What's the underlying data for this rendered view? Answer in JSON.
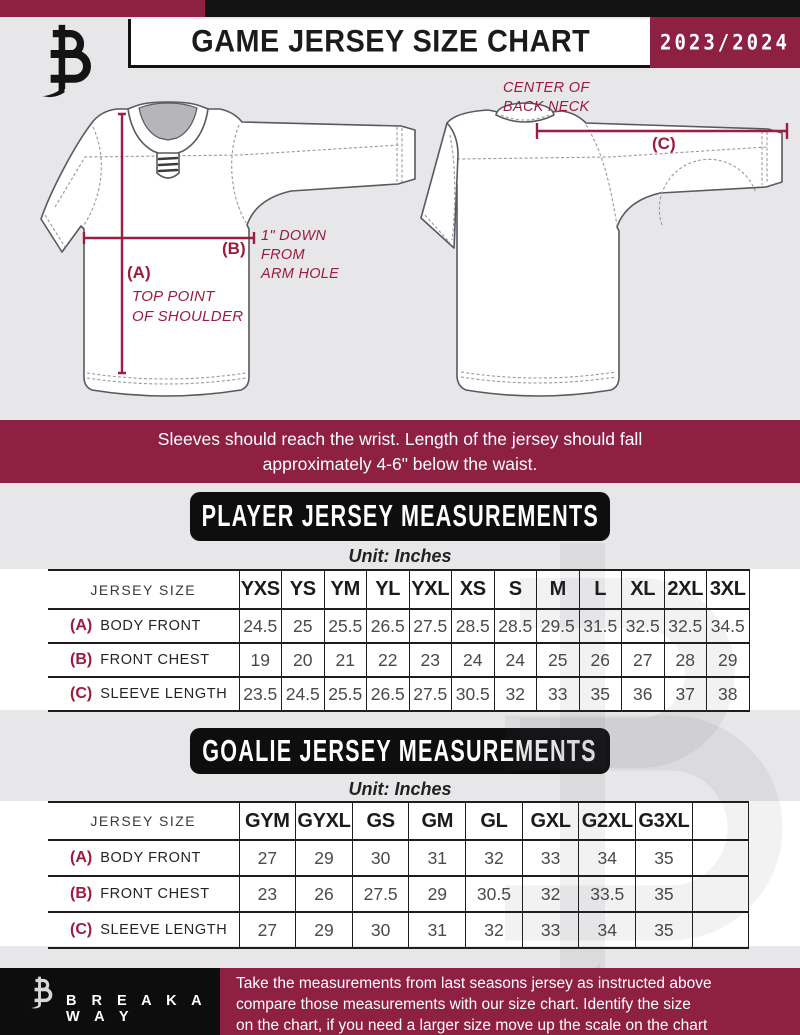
{
  "header": {
    "title": "GAME JERSEY SIZE CHART",
    "season": "2023/2024"
  },
  "diagram": {
    "front": {
      "a_label": "(A)",
      "a_note": "TOP POINT\nOF SHOULDER",
      "b_label": "(B)",
      "b_note": "1\" DOWN\nFROM\nARM HOLE"
    },
    "back": {
      "c_label": "(C)",
      "c_note": "CENTER OF\nBACK NECK"
    }
  },
  "banner": {
    "text": "Sleeves should reach the wrist. Length of the jersey should fall\napproximately 4-6\" below the waist."
  },
  "player_table": {
    "title": "PLAYER JERSEY MEASUREMENTS",
    "unit": "Unit: Inches",
    "size_header": "JERSEY SIZE",
    "sizes": [
      "YXS",
      "YS",
      "YM",
      "YL",
      "YXL",
      "XS",
      "S",
      "M",
      "L",
      "XL",
      "2XL",
      "3XL"
    ],
    "rows": [
      {
        "key": "(A)",
        "label": "BODY FRONT",
        "values": [
          "24.5",
          "25",
          "25.5",
          "26.5",
          "27.5",
          "28.5",
          "28.5",
          "29.5",
          "31.5",
          "32.5",
          "32.5",
          "34.5"
        ]
      },
      {
        "key": "(B)",
        "label": "FRONT CHEST",
        "values": [
          "19",
          "20",
          "21",
          "22",
          "23",
          "24",
          "24",
          "25",
          "26",
          "27",
          "28",
          "29"
        ]
      },
      {
        "key": "(C)",
        "label": "SLEEVE LENGTH",
        "values": [
          "23.5",
          "24.5",
          "25.5",
          "26.5",
          "27.5",
          "30.5",
          "32",
          "33",
          "35",
          "36",
          "37",
          "38"
        ]
      }
    ]
  },
  "goalie_table": {
    "title": "GOALIE JERSEY MEASUREMENTS",
    "unit": "Unit: Inches",
    "size_header": "JERSEY SIZE",
    "sizes": [
      "GYM",
      "GYXL",
      "GS",
      "GM",
      "GL",
      "GXL",
      "G2XL",
      "G3XL",
      ""
    ],
    "rows": [
      {
        "key": "(A)",
        "label": "BODY FRONT",
        "values": [
          "27",
          "29",
          "30",
          "31",
          "32",
          "33",
          "34",
          "35",
          ""
        ]
      },
      {
        "key": "(B)",
        "label": "FRONT CHEST",
        "values": [
          "23",
          "26",
          "27.5",
          "29",
          "30.5",
          "32",
          "33.5",
          "35",
          ""
        ]
      },
      {
        "key": "(C)",
        "label": "SLEEVE LENGTH",
        "values": [
          "27",
          "29",
          "30",
          "31",
          "32",
          "33",
          "34",
          "35",
          ""
        ]
      }
    ]
  },
  "footer": {
    "brand": "B R E A K A W A Y",
    "note": "Take the measurements from last seasons jersey as instructed above\ncompare those measurements  with our size chart. Identify the size\non the chart, if you need a larger size move up the scale on the chart"
  },
  "colors": {
    "maroon": "#8e2043",
    "accent": "#9b1c3e",
    "black": "#121212"
  }
}
